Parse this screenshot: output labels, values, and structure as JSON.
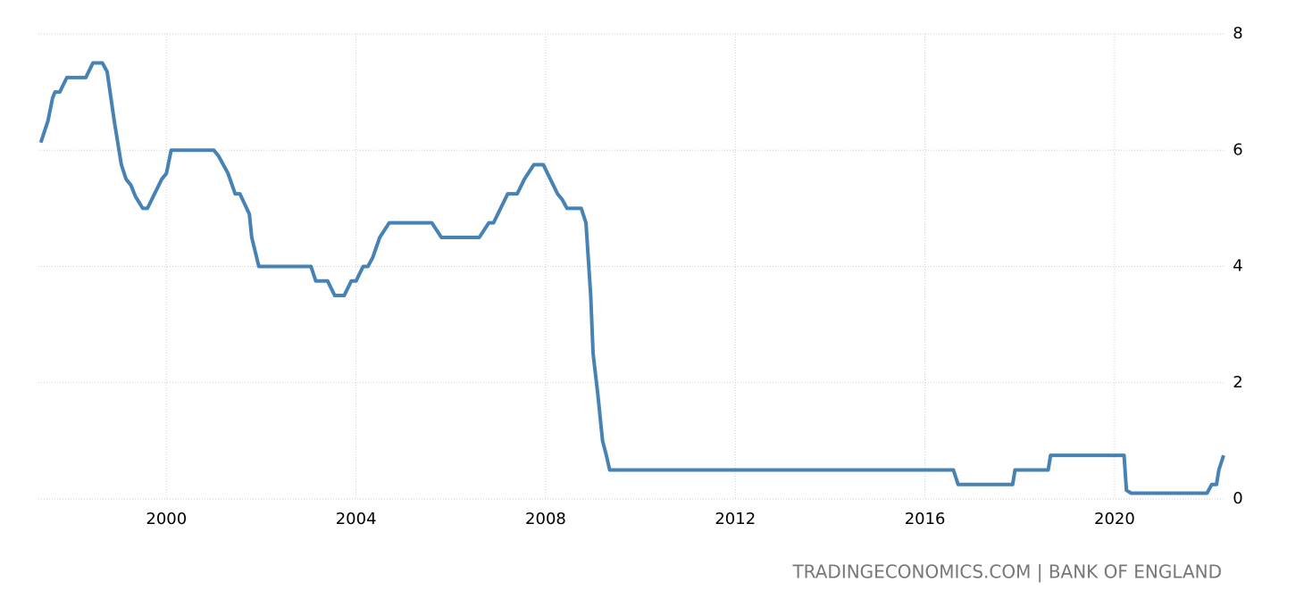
{
  "chart_data": {
    "type": "line",
    "source": "TRADINGECONOMICS.COM | BANK OF ENGLAND",
    "x": [
      1997.35,
      1997.5,
      1997.6,
      1997.65,
      1997.75,
      1997.9,
      1998.3,
      1998.45,
      1998.65,
      1998.75,
      1998.9,
      1999.05,
      1999.15,
      1999.25,
      1999.35,
      1999.5,
      1999.6,
      1999.75,
      1999.9,
      2000.0,
      2000.1,
      2001.0,
      2001.1,
      2001.2,
      2001.3,
      2001.45,
      2001.55,
      2001.75,
      2001.8,
      2001.95,
      2003.05,
      2003.15,
      2003.4,
      2003.55,
      2003.75,
      2003.9,
      2004.0,
      2004.15,
      2004.25,
      2004.35,
      2004.5,
      2004.7,
      2005.6,
      2005.8,
      2006.6,
      2006.8,
      2006.9,
      2007.05,
      2007.2,
      2007.4,
      2007.55,
      2007.75,
      2007.95,
      2008.1,
      2008.25,
      2008.35,
      2008.45,
      2008.75,
      2008.85,
      2008.95,
      2009.0,
      2009.1,
      2009.2,
      2009.28,
      2009.35,
      2016.6,
      2016.7,
      2017.85,
      2017.9,
      2018.6,
      2018.65,
      2020.2,
      2020.25,
      2020.35,
      2021.95,
      2022.05,
      2022.15,
      2022.2,
      2022.3
    ],
    "values": [
      6.13,
      6.5,
      6.9,
      7.0,
      7.0,
      7.25,
      7.25,
      7.5,
      7.5,
      7.35,
      6.5,
      5.75,
      5.5,
      5.4,
      5.2,
      5.0,
      5.0,
      5.25,
      5.5,
      5.6,
      6.0,
      6.0,
      5.9,
      5.75,
      5.6,
      5.25,
      5.25,
      4.9,
      4.5,
      4.0,
      4.0,
      3.75,
      3.75,
      3.5,
      3.5,
      3.75,
      3.75,
      4.0,
      4.0,
      4.15,
      4.5,
      4.75,
      4.75,
      4.5,
      4.5,
      4.75,
      4.75,
      5.0,
      5.25,
      5.25,
      5.5,
      5.75,
      5.75,
      5.5,
      5.25,
      5.15,
      5.0,
      5.0,
      4.75,
      3.5,
      2.5,
      1.8,
      1.0,
      0.75,
      0.5,
      0.5,
      0.25,
      0.25,
      0.5,
      0.5,
      0.75,
      0.75,
      0.15,
      0.1,
      0.1,
      0.25,
      0.25,
      0.5,
      0.75
    ],
    "color": "#4682b4",
    "xlim": [
      1997.3,
      2022.3
    ],
    "xticks": [
      2000,
      2004,
      2008,
      2012,
      2016,
      2020
    ],
    "ylim": [
      0,
      8
    ],
    "yticks": [
      0,
      2,
      4,
      6,
      8
    ],
    "grid": true
  }
}
